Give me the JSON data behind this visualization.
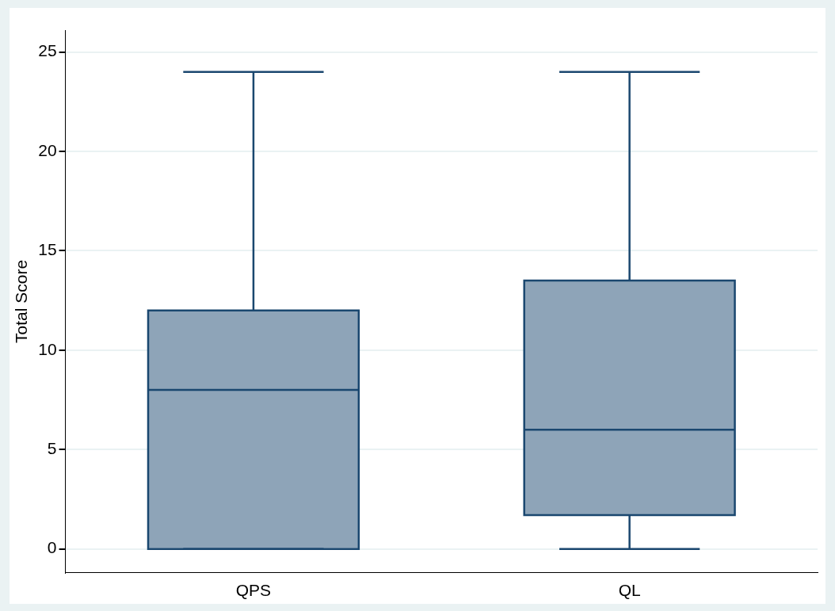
{
  "chart_data": {
    "type": "box",
    "ylabel": "Total Score",
    "categories": [
      "QPS",
      "QL"
    ],
    "color": "#8ea4b8",
    "boxes": [
      {
        "low": 0,
        "q1": 0,
        "median": 8,
        "q3": 12,
        "high": 24
      },
      {
        "low": 0,
        "q1": 1.7,
        "median": 6,
        "q3": 13.5,
        "high": 24
      }
    ],
    "ylim": [
      -1.2,
      26.1
    ],
    "yticks": [
      0,
      5,
      10,
      15,
      20,
      25
    ],
    "grid": "y"
  }
}
